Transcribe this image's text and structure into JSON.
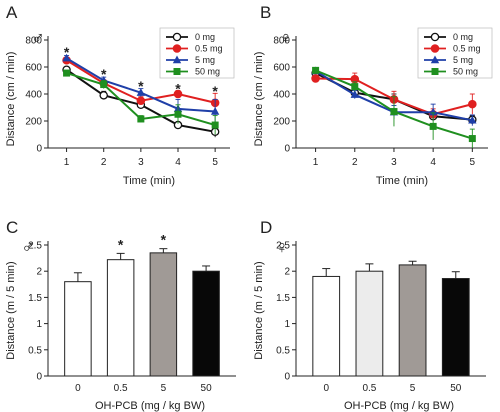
{
  "chart_data": [
    {
      "panel": "A",
      "sex_symbol": "♂",
      "type": "line",
      "xlabel": "Time  (min)",
      "ylabel": "Distance  (cm / min)",
      "x": [
        1,
        2,
        3,
        4,
        5
      ],
      "ylim": [
        0,
        800
      ],
      "yticks": [
        0,
        200,
        400,
        600,
        800
      ],
      "legend_position": "top-right",
      "series": [
        {
          "name": "0   mg",
          "color": "#111111",
          "marker": "open-circle",
          "values": [
            580,
            390,
            320,
            170,
            120
          ],
          "errors": [
            15,
            30,
            30,
            20,
            40
          ]
        },
        {
          "name": "0.5 mg",
          "color": "#e02020",
          "marker": "filled-circle",
          "values": [
            650,
            480,
            350,
            400,
            335
          ],
          "errors": [
            15,
            25,
            30,
            25,
            70
          ]
        },
        {
          "name": "5   mg",
          "color": "#1f3fa8",
          "marker": "filled-triangle",
          "values": [
            665,
            500,
            410,
            290,
            270
          ],
          "errors": [
            20,
            25,
            30,
            70,
            90
          ]
        },
        {
          "name": "50  mg",
          "color": "#1f8f1f",
          "marker": "filled-square",
          "values": [
            555,
            470,
            215,
            250,
            170
          ],
          "errors": [
            15,
            30,
            25,
            70,
            70
          ]
        }
      ],
      "annotations": [
        {
          "x": 1,
          "y": 720,
          "text": "*"
        },
        {
          "x": 2,
          "y": 555,
          "text": "*"
        },
        {
          "x": 3,
          "y": 465,
          "text": "*"
        },
        {
          "x": 4,
          "y": 450,
          "text": "*"
        },
        {
          "x": 5,
          "y": 430,
          "text": "*"
        }
      ]
    },
    {
      "panel": "B",
      "sex_symbol": "♀",
      "type": "line",
      "xlabel": "Time  (min)",
      "ylabel": "Distance  (cm / min)",
      "x": [
        1,
        2,
        3,
        4,
        5
      ],
      "ylim": [
        0,
        800
      ],
      "yticks": [
        0,
        200,
        400,
        600,
        800
      ],
      "legend_position": "top-right",
      "series": [
        {
          "name": "0   mg",
          "color": "#111111",
          "marker": "open-circle",
          "values": [
            555,
            410,
            360,
            235,
            210
          ],
          "errors": [
            20,
            25,
            40,
            30,
            30
          ]
        },
        {
          "name": "0.5 mg",
          "color": "#e02020",
          "marker": "filled-circle",
          "values": [
            515,
            510,
            360,
            250,
            325
          ],
          "errors": [
            20,
            45,
            60,
            40,
            75
          ]
        },
        {
          "name": "5   mg",
          "color": "#1f3fa8",
          "marker": "filled-triangle",
          "values": [
            570,
            395,
            265,
            265,
            205
          ],
          "errors": [
            15,
            30,
            50,
            60,
            40
          ]
        },
        {
          "name": "50  mg",
          "color": "#1f8f1f",
          "marker": "filled-square",
          "values": [
            575,
            455,
            270,
            160,
            70
          ],
          "errors": [
            20,
            35,
            110,
            100,
            70
          ]
        }
      ]
    },
    {
      "panel": "C",
      "sex_symbol": "♂",
      "type": "bar",
      "xlabel": "OH-PCB  (mg / kg BW)",
      "ylabel": "Distance  (m / 5 min)",
      "categories": [
        "0",
        "0.5",
        "5",
        "50"
      ],
      "values": [
        1.8,
        2.22,
        2.35,
        2.0
      ],
      "errors": [
        0.17,
        0.12,
        0.08,
        0.1
      ],
      "bar_fills": [
        "#ffffff",
        "#ffffff",
        "#a09a96",
        "#080808"
      ],
      "ylim": [
        0,
        2.5
      ],
      "yticks": [
        "0",
        "0.5",
        "1",
        "1.5",
        "2",
        "2.5"
      ],
      "annotations": [
        {
          "category": "0.5",
          "text": "*"
        },
        {
          "category": "5",
          "text": "*"
        }
      ]
    },
    {
      "panel": "D",
      "sex_symbol": "♀",
      "type": "bar",
      "xlabel": "OH-PCB  (mg / kg BW)",
      "ylabel": "Distance  (m / 5 min)",
      "categories": [
        "0",
        "0.5",
        "5",
        "50"
      ],
      "values": [
        1.9,
        2.0,
        2.12,
        1.86
      ],
      "errors": [
        0.15,
        0.14,
        0.07,
        0.13
      ],
      "bar_fills": [
        "#ffffff",
        "#ececec",
        "#a09a96",
        "#080808"
      ],
      "ylim": [
        0,
        2.5
      ],
      "yticks": [
        "0",
        "0.5",
        "1",
        "1.5",
        "2",
        "2.5"
      ]
    }
  ]
}
